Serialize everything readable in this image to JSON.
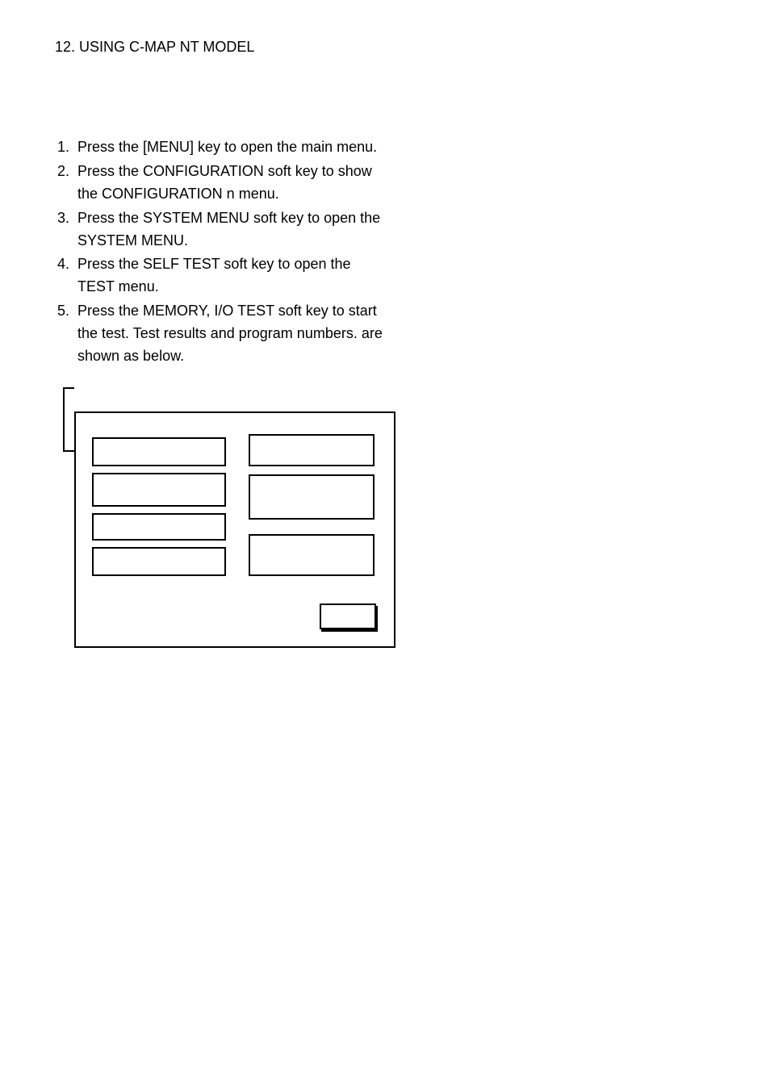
{
  "header": "12. USING C-MAP NT MODEL",
  "list": [
    {
      "num": "1.",
      "text": "Press the [MENU] key to open the main menu."
    },
    {
      "num": "2.",
      "text": "Press the CONFIGURATION soft key to show the CONFIGURATION n menu."
    },
    {
      "num": "3.",
      "text": "Press the SYSTEM MENU soft key to open the SYSTEM MENU."
    },
    {
      "num": "4.",
      "text": "Press the SELF TEST soft key to open the TEST menu."
    },
    {
      "num": "5.",
      "text": "Press the MEMORY, I/O TEST soft key to start the test. Test results and program numbers. are shown as below."
    }
  ],
  "diagram": {
    "border_color": "#000000",
    "background": "#ffffff"
  }
}
